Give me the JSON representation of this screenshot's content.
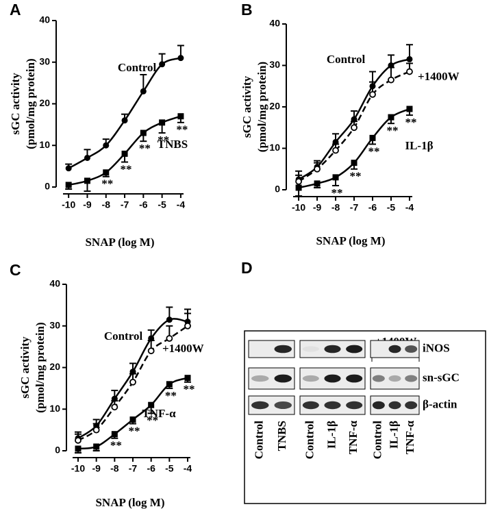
{
  "chart_data": [
    {
      "type": "line",
      "panel_label": "A",
      "xlabel": "SNAP (log M)",
      "ylabel": [
        "sGC activity",
        "(pmol/mg protein)"
      ],
      "x": [
        -10,
        -9,
        -8,
        -7,
        -6,
        -5,
        -4
      ],
      "xlim": [
        -10.3,
        -3.85
      ],
      "xticks": [
        -10,
        -9,
        -8,
        -7,
        -6,
        -5,
        -4
      ],
      "ylim": [
        0,
        40
      ],
      "yticks": [
        0,
        10,
        20,
        30,
        40
      ],
      "series": [
        {
          "name": "Control",
          "color": "#000000",
          "marker": "filled-circle",
          "dashed": false,
          "values": [
            4.5,
            7,
            10,
            16,
            23,
            29.5,
            31
          ],
          "errors": [
            1,
            2,
            1.5,
            1.5,
            4,
            2.5,
            3
          ]
        },
        {
          "name": "TNBS",
          "color": "#000000",
          "marker": "filled-square",
          "dashed": false,
          "values": [
            0.5,
            1.5,
            3.5,
            8,
            13,
            15.5,
            17
          ],
          "errors": [
            1,
            2.5,
            1,
            2,
            2,
            2.5,
            1.5
          ],
          "significance": [
            null,
            null,
            "**",
            "**",
            "**",
            "**",
            "**"
          ]
        }
      ]
    },
    {
      "type": "line",
      "panel_label": "B",
      "xlabel": "SNAP (log M)",
      "ylabel": [
        "sGC activity",
        "(pmol/mg protein)"
      ],
      "x": [
        -10,
        -9,
        -8,
        -7,
        -6,
        -5,
        -4
      ],
      "xlim": [
        -10.3,
        -3.85
      ],
      "xticks": [
        -10,
        -9,
        -8,
        -7,
        -6,
        -5,
        -4
      ],
      "ylim": [
        0,
        40
      ],
      "yticks": [
        0,
        10,
        20,
        30,
        40
      ],
      "series": [
        {
          "name": "Control",
          "color": "#000000",
          "marker": "filled-circle",
          "dashed": false,
          "values": [
            2.5,
            5.5,
            11.5,
            17,
            25,
            30,
            31.5
          ],
          "errors": [
            2,
            1.5,
            2,
            2,
            3.5,
            2.5,
            3.5
          ]
        },
        {
          "name": "+1400W",
          "color": "#000000",
          "marker": "open-circle",
          "dashed": true,
          "values": [
            2,
            5,
            9.5,
            15,
            23,
            26.5,
            28.5
          ],
          "errors": [
            1.5,
            1.5,
            1.5,
            1.5,
            3,
            3,
            2
          ]
        },
        {
          "name": "IL-1β",
          "color": "#000000",
          "marker": "filled-square",
          "dashed": false,
          "values": [
            0.5,
            1.5,
            3,
            6.5,
            12.5,
            17.5,
            19.5
          ],
          "errors": [
            2,
            1,
            2,
            1.5,
            1.5,
            1.5,
            1.5
          ],
          "significance": [
            null,
            null,
            "**",
            "**",
            "**",
            "**",
            "**"
          ]
        }
      ]
    },
    {
      "type": "line",
      "panel_label": "C",
      "xlabel": "SNAP (log M)",
      "ylabel": [
        "sGC activity",
        "(pmol/mg protein)"
      ],
      "x": [
        -10,
        -9,
        -8,
        -7,
        -6,
        -5,
        -4
      ],
      "xlim": [
        -10.3,
        -3.85
      ],
      "xticks": [
        -10,
        -9,
        -8,
        -7,
        -6,
        -5,
        -4
      ],
      "ylim": [
        0,
        40
      ],
      "yticks": [
        0,
        10,
        20,
        30,
        40
      ],
      "series": [
        {
          "name": "Control",
          "color": "#000000",
          "marker": "filled-circle",
          "dashed": false,
          "values": [
            3,
            6,
            12.5,
            19,
            27,
            31.5,
            31
          ],
          "errors": [
            1.5,
            1.5,
            2,
            2,
            2,
            3,
            3
          ]
        },
        {
          "name": "+1400W",
          "color": "#000000",
          "marker": "open-circle",
          "dashed": true,
          "values": [
            2.5,
            5,
            10.5,
            16.5,
            24,
            27,
            30
          ],
          "errors": [
            1.5,
            1.5,
            1.5,
            2,
            2.5,
            3,
            3
          ]
        },
        {
          "name": "TNF-α",
          "color": "#000000",
          "marker": "filled-square",
          "dashed": false,
          "values": [
            0.5,
            1,
            4,
            7.5,
            11,
            16,
            17.5
          ],
          "errors": [
            1,
            1,
            1,
            1,
            2,
            1,
            1
          ],
          "significance": [
            null,
            null,
            "**",
            "**",
            "**",
            "**",
            "**"
          ]
        }
      ]
    }
  ],
  "panel_d": {
    "label": "D",
    "bracket_label": "+1400W",
    "rows": [
      "iNOS",
      "sn-sGC",
      "β-actin"
    ],
    "lanes": [
      [
        "Control",
        "TNBS"
      ],
      [
        "Control",
        "IL-1β",
        "TNF-α"
      ],
      [
        "Control",
        "IL-1β",
        "TNF-α"
      ]
    ]
  }
}
